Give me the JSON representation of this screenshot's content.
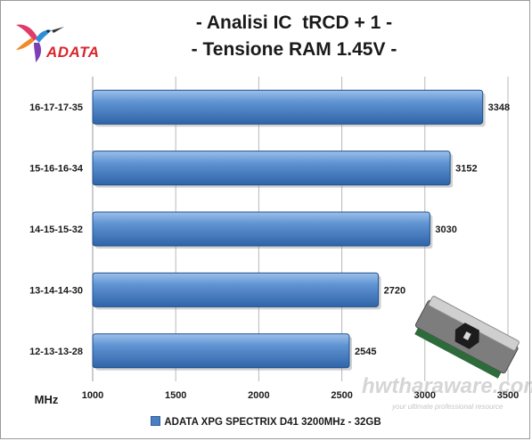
{
  "header": {
    "title_line1": "- Analisi IC  tRCD + 1 -",
    "title_line2": "- Tensione RAM 1.45V -",
    "logo_text": "ADATA"
  },
  "watermark": {
    "text": "hwtharaware.com",
    "subtext": "your ultimate professional resource"
  },
  "colors": {
    "bar_fill": "#4a7fc1",
    "bar_highlight": "#7aa6de",
    "bar_edge": "#1f4f8c",
    "grid": "#b8b8b8"
  },
  "chart_data": {
    "type": "bar",
    "orientation": "horizontal",
    "categories": [
      "16-17-17-35",
      "15-16-16-34",
      "14-15-15-32",
      "13-14-14-30",
      "12-13-13-28"
    ],
    "series": [
      {
        "name": "ADATA XPG SPECTRIX D41 3200MHz - 32GB",
        "values": [
          3348,
          3152,
          3030,
          2720,
          2545
        ]
      }
    ],
    "xlabel": "MHz",
    "xlim": [
      1000,
      3500
    ],
    "xticks": [
      1000,
      1500,
      2000,
      2500,
      3000,
      3500
    ],
    "grid": true,
    "legend_position": "bottom"
  }
}
